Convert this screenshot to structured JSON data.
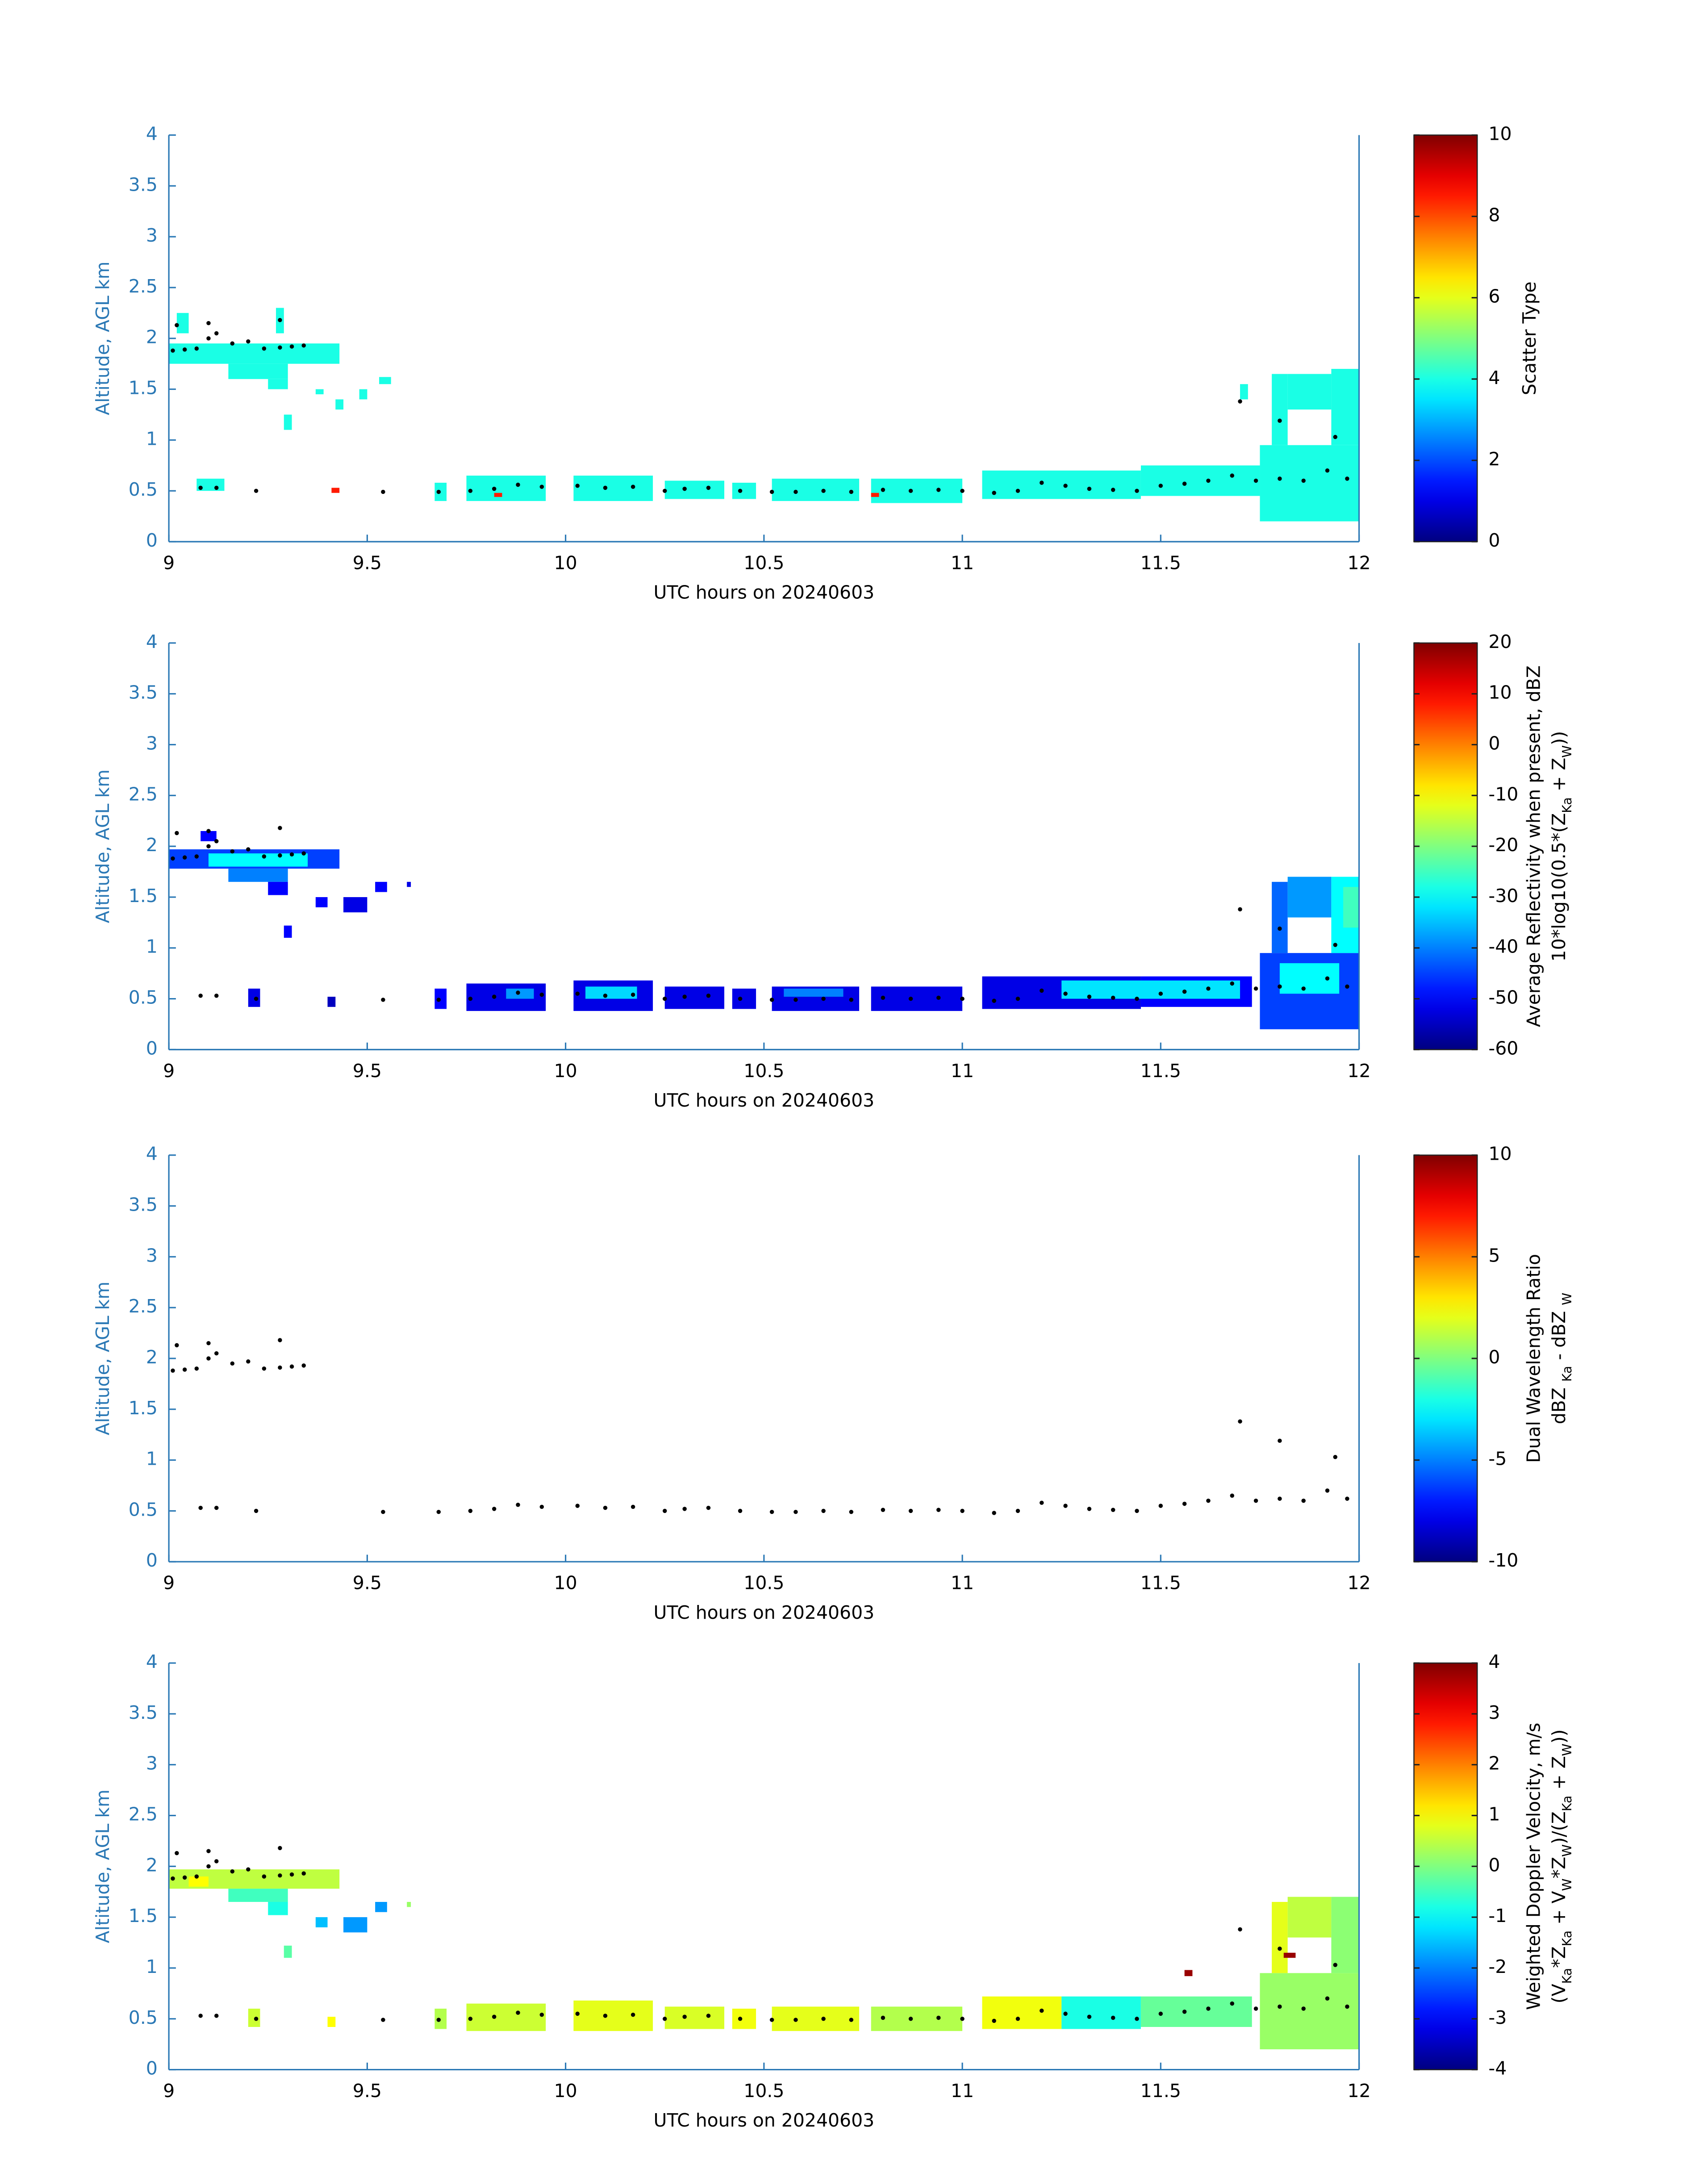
{
  "chart_data": [
    {
      "type": "heatmap",
      "colormap": "jet",
      "xlabel": "UTC hours on 20240603",
      "ylabel": "Altitude, AGL km",
      "xlim": [
        9,
        12
      ],
      "ylim": [
        0,
        4
      ],
      "xticks": [
        9,
        9.5,
        10,
        10.5,
        11,
        11.5,
        12
      ],
      "yticks": [
        0,
        0.5,
        1,
        1.5,
        2,
        2.5,
        3,
        3.5,
        4
      ],
      "clim": [
        0,
        10
      ],
      "cticks": [
        0,
        2,
        4,
        6,
        8,
        10
      ],
      "colorbar_label": [
        [
          "Scatter Type"
        ]
      ],
      "cells": [
        [
          9.0,
          9.43,
          1.75,
          1.95,
          4
        ],
        [
          9.15,
          9.3,
          1.6,
          1.75,
          4
        ],
        [
          9.25,
          9.3,
          1.5,
          1.6,
          4
        ],
        [
          9.02,
          9.05,
          2.05,
          2.25,
          4
        ],
        [
          9.27,
          9.29,
          2.05,
          2.3,
          4
        ],
        [
          9.29,
          9.31,
          1.1,
          1.25,
          4
        ],
        [
          9.37,
          9.39,
          1.45,
          1.5,
          4
        ],
        [
          9.42,
          9.44,
          1.3,
          1.4,
          4
        ],
        [
          9.48,
          9.5,
          1.4,
          1.5,
          4
        ],
        [
          9.53,
          9.56,
          1.55,
          1.62,
          4
        ],
        [
          9.07,
          9.14,
          0.5,
          0.62,
          4
        ],
        [
          9.41,
          9.43,
          0.48,
          0.53,
          8.5
        ],
        [
          9.67,
          9.7,
          0.4,
          0.58,
          4
        ],
        [
          9.75,
          9.95,
          0.4,
          0.65,
          4
        ],
        [
          9.82,
          9.84,
          0.44,
          0.48,
          8.5
        ],
        [
          10.02,
          10.22,
          0.4,
          0.65,
          4
        ],
        [
          10.25,
          10.4,
          0.42,
          0.6,
          4
        ],
        [
          10.42,
          10.48,
          0.42,
          0.58,
          4
        ],
        [
          10.52,
          10.74,
          0.4,
          0.62,
          4
        ],
        [
          10.77,
          11.0,
          0.38,
          0.62,
          4
        ],
        [
          10.77,
          10.79,
          0.44,
          0.48,
          8.5
        ],
        [
          11.05,
          11.45,
          0.42,
          0.7,
          4
        ],
        [
          11.45,
          11.75,
          0.45,
          0.75,
          4
        ],
        [
          11.75,
          12.0,
          0.2,
          0.95,
          4
        ],
        [
          11.78,
          11.82,
          0.95,
          1.65,
          4
        ],
        [
          11.82,
          11.93,
          1.3,
          1.65,
          4
        ],
        [
          11.93,
          12.0,
          0.95,
          1.7,
          4
        ],
        [
          11.7,
          11.72,
          1.4,
          1.55,
          4
        ]
      ]
    },
    {
      "type": "heatmap",
      "colormap": "jet",
      "xlabel": "UTC hours on 20240603",
      "ylabel": "Altitude, AGL km",
      "xlim": [
        9,
        12
      ],
      "ylim": [
        0,
        4
      ],
      "xticks": [
        9,
        9.5,
        10,
        10.5,
        11,
        11.5,
        12
      ],
      "yticks": [
        0,
        0.5,
        1,
        1.5,
        2,
        2.5,
        3,
        3.5,
        4
      ],
      "clim": [
        -60,
        20
      ],
      "cticks": [
        -60,
        -50,
        -40,
        -30,
        -20,
        -10,
        0,
        10,
        20
      ],
      "colorbar_label": [
        [
          "Average Reflectivity when present, dBZ"
        ],
        [
          "10*log10(0.5*(Z",
          "Ka",
          " + Z",
          "W",
          "))"
        ]
      ],
      "cells": [
        [
          9.0,
          9.43,
          1.78,
          1.97,
          -45
        ],
        [
          9.1,
          9.35,
          1.8,
          1.93,
          -30
        ],
        [
          9.15,
          9.3,
          1.65,
          1.78,
          -40
        ],
        [
          9.25,
          9.3,
          1.52,
          1.65,
          -50
        ],
        [
          9.29,
          9.31,
          1.1,
          1.22,
          -50
        ],
        [
          9.08,
          9.12,
          2.05,
          2.15,
          -50
        ],
        [
          9.37,
          9.4,
          1.4,
          1.5,
          -50
        ],
        [
          9.44,
          9.5,
          1.35,
          1.5,
          -52
        ],
        [
          9.52,
          9.55,
          1.55,
          1.65,
          -50
        ],
        [
          9.6,
          9.61,
          1.6,
          1.65,
          -52
        ],
        [
          9.2,
          9.23,
          0.42,
          0.6,
          -52
        ],
        [
          9.4,
          9.42,
          0.42,
          0.52,
          -55
        ],
        [
          9.67,
          9.7,
          0.4,
          0.6,
          -50
        ],
        [
          9.75,
          9.95,
          0.38,
          0.65,
          -52
        ],
        [
          10.02,
          10.22,
          0.38,
          0.68,
          -52
        ],
        [
          10.25,
          10.4,
          0.4,
          0.62,
          -52
        ],
        [
          10.42,
          10.48,
          0.4,
          0.6,
          -52
        ],
        [
          10.52,
          10.74,
          0.38,
          0.62,
          -52
        ],
        [
          10.77,
          11.0,
          0.38,
          0.62,
          -52
        ],
        [
          11.05,
          11.45,
          0.4,
          0.72,
          -52
        ],
        [
          11.45,
          11.73,
          0.42,
          0.72,
          -50
        ],
        [
          10.05,
          10.18,
          0.5,
          0.62,
          -33
        ],
        [
          11.25,
          11.7,
          0.5,
          0.68,
          -32
        ],
        [
          9.85,
          9.92,
          0.5,
          0.6,
          -38
        ],
        [
          10.55,
          10.7,
          0.52,
          0.6,
          -40
        ],
        [
          11.75,
          12.0,
          0.2,
          0.95,
          -45
        ],
        [
          11.78,
          11.82,
          0.95,
          1.65,
          -42
        ],
        [
          11.82,
          11.93,
          1.3,
          1.7,
          -38
        ],
        [
          11.93,
          12.0,
          0.95,
          1.7,
          -30
        ],
        [
          11.96,
          12.0,
          1.2,
          1.6,
          -25
        ],
        [
          11.8,
          11.95,
          0.55,
          0.85,
          -30
        ]
      ]
    },
    {
      "type": "heatmap",
      "colormap": "jet",
      "xlabel": "UTC hours on 20240603",
      "ylabel": "Altitude, AGL km",
      "xlim": [
        9,
        12
      ],
      "ylim": [
        0,
        4
      ],
      "xticks": [
        9,
        9.5,
        10,
        10.5,
        11,
        11.5,
        12
      ],
      "yticks": [
        0,
        0.5,
        1,
        1.5,
        2,
        2.5,
        3,
        3.5,
        4
      ],
      "clim": [
        -10,
        10
      ],
      "cticks": [
        -10,
        -5,
        0,
        5,
        10
      ],
      "colorbar_label": [
        [
          "Dual Wavelength Ratio"
        ],
        [
          "dBZ ",
          "Ka",
          " - dBZ ",
          "W"
        ]
      ],
      "cells": []
    },
    {
      "type": "heatmap",
      "colormap": "jet",
      "xlabel": "UTC hours on 20240603",
      "ylabel": "Altitude, AGL km",
      "xlim": [
        9,
        12
      ],
      "ylim": [
        0,
        4
      ],
      "xticks": [
        9,
        9.5,
        10,
        10.5,
        11,
        11.5,
        12
      ],
      "yticks": [
        0,
        0.5,
        1,
        1.5,
        2,
        2.5,
        3,
        3.5,
        4
      ],
      "clim": [
        -4,
        4
      ],
      "cticks": [
        -4,
        -3,
        -2,
        -1,
        0,
        1,
        2,
        3,
        4
      ],
      "colorbar_label": [
        [
          "Weighted Doppler Velocity, m/s"
        ],
        [
          "(V",
          "Ka",
          "*Z",
          "Ka",
          " + V",
          "W",
          "*Z",
          "W",
          ")/(Z",
          "Ka",
          " + Z",
          "W",
          "))"
        ]
      ],
      "cells": [
        [
          9.0,
          9.43,
          1.78,
          1.97,
          0.5
        ],
        [
          9.15,
          9.3,
          1.65,
          1.78,
          -0.5
        ],
        [
          9.25,
          9.3,
          1.52,
          1.65,
          -0.8
        ],
        [
          9.05,
          9.1,
          1.8,
          1.9,
          1.0
        ],
        [
          9.29,
          9.31,
          1.1,
          1.22,
          -0.3
        ],
        [
          9.37,
          9.4,
          1.4,
          1.5,
          -1.5
        ],
        [
          9.44,
          9.5,
          1.35,
          1.5,
          -1.8
        ],
        [
          9.52,
          9.55,
          1.55,
          1.65,
          -1.8
        ],
        [
          9.6,
          9.61,
          1.6,
          1.65,
          0.2
        ],
        [
          9.2,
          9.23,
          0.42,
          0.6,
          0.6
        ],
        [
          9.4,
          9.42,
          0.42,
          0.52,
          1.0
        ],
        [
          9.67,
          9.7,
          0.4,
          0.6,
          0.4
        ],
        [
          9.75,
          9.95,
          0.38,
          0.65,
          0.6
        ],
        [
          10.02,
          10.22,
          0.38,
          0.68,
          0.8
        ],
        [
          10.25,
          10.4,
          0.4,
          0.62,
          0.7
        ],
        [
          10.42,
          10.48,
          0.4,
          0.6,
          0.9
        ],
        [
          10.52,
          10.74,
          0.38,
          0.62,
          0.8
        ],
        [
          10.77,
          11.0,
          0.38,
          0.62,
          0.4
        ],
        [
          11.05,
          11.25,
          0.4,
          0.72,
          0.9
        ],
        [
          11.25,
          11.45,
          0.4,
          0.72,
          -0.8
        ],
        [
          11.45,
          11.73,
          0.42,
          0.72,
          -0.2
        ],
        [
          11.75,
          12.0,
          0.2,
          0.95,
          0.2
        ],
        [
          11.78,
          11.82,
          0.95,
          1.65,
          0.8
        ],
        [
          11.82,
          11.93,
          1.3,
          1.7,
          0.5
        ],
        [
          11.93,
          12.0,
          0.95,
          1.7,
          0.1
        ],
        [
          11.56,
          11.58,
          0.92,
          0.98,
          3.8
        ],
        [
          11.81,
          11.84,
          1.1,
          1.15,
          3.8
        ]
      ]
    }
  ],
  "cloud_base": {
    "x": [
      9.01,
      9.04,
      9.07,
      9.1,
      9.12,
      9.16,
      9.2,
      9.24,
      9.28,
      9.31,
      9.34,
      9.02,
      9.28,
      9.1,
      9.08,
      9.12,
      9.22,
      9.54,
      9.68,
      9.76,
      9.82,
      9.88,
      9.94,
      10.03,
      10.1,
      10.17,
      10.25,
      10.3,
      10.36,
      10.44,
      10.52,
      10.58,
      10.65,
      10.72,
      10.8,
      10.87,
      10.94,
      11.0,
      11.08,
      11.14,
      11.2,
      11.26,
      11.32,
      11.38,
      11.44,
      11.5,
      11.56,
      11.62,
      11.68,
      11.74,
      11.8,
      11.86,
      11.92,
      11.97,
      11.7,
      11.8,
      11.94
    ],
    "y": [
      1.88,
      1.89,
      1.9,
      2.0,
      2.05,
      1.95,
      1.97,
      1.9,
      1.91,
      1.92,
      1.93,
      2.13,
      2.18,
      2.15,
      0.53,
      0.53,
      0.5,
      0.49,
      0.49,
      0.5,
      0.52,
      0.56,
      0.54,
      0.55,
      0.53,
      0.54,
      0.5,
      0.52,
      0.53,
      0.5,
      0.49,
      0.49,
      0.5,
      0.49,
      0.51,
      0.5,
      0.51,
      0.5,
      0.48,
      0.5,
      0.58,
      0.55,
      0.52,
      0.51,
      0.5,
      0.55,
      0.57,
      0.6,
      0.65,
      0.6,
      0.62,
      0.6,
      0.7,
      0.62,
      1.38,
      1.19,
      1.03
    ]
  }
}
